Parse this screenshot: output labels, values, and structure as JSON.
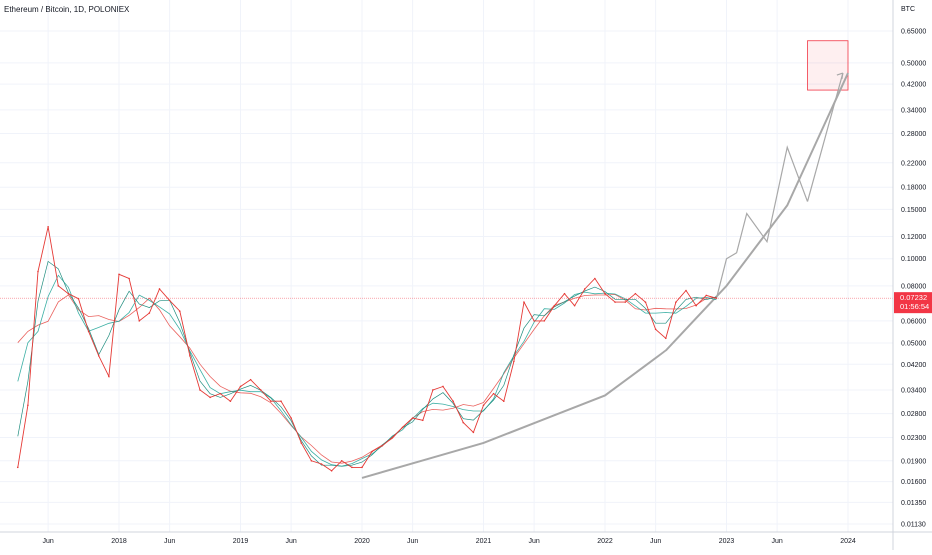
{
  "title": "Ethereum / Bitcoin, 1D, POLONIEX",
  "chart_data": {
    "type": "line",
    "y_scale": "log",
    "ylabel": "BTC",
    "y_ticks": [
      "0.65000",
      "0.50000",
      "0.42000",
      "0.34000",
      "0.28000",
      "0.22000",
      "0.18000",
      "0.15000",
      "0.12000",
      "0.10000",
      "0.08000",
      "0.06000",
      "0.05000",
      "0.04200",
      "0.03400",
      "0.02800",
      "0.02300",
      "0.01900",
      "0.01600",
      "0.01350",
      "0.01130"
    ],
    "x_ticks": [
      "Jun",
      "2018",
      "Jun",
      "2019",
      "Jun",
      "2020",
      "Jun",
      "2021",
      "Jun",
      "2022",
      "Jun",
      "2023",
      "Jun",
      "2024"
    ],
    "last_price": "0.07232",
    "countdown": "01:56:54",
    "colors": {
      "price": "#e53935",
      "ma": "#26a69a",
      "ma_slow": "#e53935",
      "curve": "#a8a8a8",
      "tag": "#f23645",
      "target": "#f23645"
    },
    "series": [
      {
        "x": [
          "2017-03",
          "2017-04",
          "2017-05",
          "2017-06",
          "2017-07",
          "2017-08",
          "2017-09",
          "2017-10",
          "2017-11",
          "2017-12",
          "2018-01",
          "2018-02",
          "2018-03",
          "2018-04",
          "2018-05",
          "2018-06",
          "2018-07",
          "2018-08",
          "2018-09",
          "2018-10",
          "2018-11",
          "2018-12",
          "2019-01",
          "2019-02",
          "2019-03",
          "2019-04",
          "2019-05",
          "2019-06",
          "2019-07",
          "2019-08",
          "2019-09",
          "2019-10",
          "2019-11",
          "2019-12",
          "2020-01",
          "2020-02",
          "2020-03",
          "2020-04",
          "2020-05",
          "2020-06",
          "2020-07",
          "2020-08",
          "2020-09",
          "2020-10",
          "2020-11",
          "2020-12",
          "2021-01",
          "2021-02",
          "2021-03",
          "2021-04",
          "2021-05",
          "2021-06",
          "2021-07",
          "2021-08",
          "2021-09",
          "2021-10",
          "2021-11",
          "2021-12",
          "2022-01",
          "2022-02",
          "2022-03",
          "2022-04",
          "2022-05",
          "2022-06",
          "2022-07",
          "2022-08",
          "2022-09",
          "2022-10",
          "2022-11",
          "2022-12"
        ],
        "y": [
          0.018,
          0.03,
          0.09,
          0.13,
          0.08,
          0.075,
          0.072,
          0.055,
          0.045,
          0.038,
          0.088,
          0.085,
          0.06,
          0.064,
          0.078,
          0.071,
          0.065,
          0.045,
          0.034,
          0.032,
          0.033,
          0.031,
          0.035,
          0.037,
          0.034,
          0.031,
          0.031,
          0.027,
          0.022,
          0.019,
          0.0185,
          0.0175,
          0.019,
          0.018,
          0.018,
          0.0205,
          0.0215,
          0.023,
          0.025,
          0.027,
          0.0265,
          0.034,
          0.035,
          0.031,
          0.026,
          0.024,
          0.03,
          0.033,
          0.031,
          0.043,
          0.07,
          0.06,
          0.06,
          0.068,
          0.075,
          0.068,
          0.078,
          0.085,
          0.075,
          0.07,
          0.07,
          0.075,
          0.07,
          0.056,
          0.052,
          0.07,
          0.077,
          0.068,
          0.074,
          0.07232
        ]
      }
    ],
    "projection": {
      "curve": [
        [
          "2020-01",
          0.0165
        ],
        [
          "2021-01",
          0.022
        ],
        [
          "2022-01",
          0.0325
        ],
        [
          "2022-07",
          0.047
        ],
        [
          "2023-01",
          0.08
        ],
        [
          "2023-07",
          0.155
        ],
        [
          "2024-01",
          0.46
        ]
      ],
      "zigzag": [
        [
          "2022-12",
          0.072
        ],
        [
          "2023-01",
          0.1
        ],
        [
          "2023-02",
          0.105
        ],
        [
          "2023-03",
          0.145
        ],
        [
          "2023-05",
          0.115
        ],
        [
          "2023-07",
          0.25
        ],
        [
          "2023-09",
          0.16
        ]
      ]
    },
    "target_box": {
      "x_range": [
        "2023-09",
        "2024-01"
      ],
      "y_range": [
        0.4,
        0.6
      ]
    }
  }
}
